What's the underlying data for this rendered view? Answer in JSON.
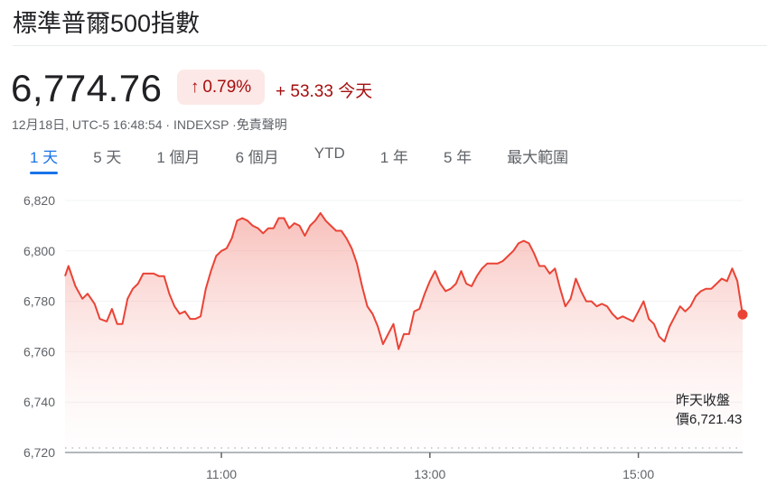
{
  "header": {
    "title": "標準普爾500指數"
  },
  "quote": {
    "price": "6,774.76",
    "change_pct": "0.79%",
    "change_abs": "+ 53.33",
    "change_period": "今天",
    "meta": "12月18日, UTC-5 16:48:54 · INDEXSP ·免責聲明",
    "direction_icon": "arrow-up-icon",
    "color": "#a50e0e"
  },
  "tabs": [
    {
      "label": "1 天",
      "active": true
    },
    {
      "label": "5 天"
    },
    {
      "label": "1 個月"
    },
    {
      "label": "6 個月"
    },
    {
      "label": "YTD"
    },
    {
      "label": "1 年"
    },
    {
      "label": "5 年"
    },
    {
      "label": "最大範圍"
    }
  ],
  "chart_data": {
    "type": "area",
    "xlabel": "",
    "ylabel": "",
    "x_ticks": [
      "11:00",
      "13:00",
      "15:00"
    ],
    "y_ticks": [
      "6,720",
      "6,740",
      "6,760",
      "6,780",
      "6,800",
      "6,820"
    ],
    "xlim": [
      "09:30",
      "16:00"
    ],
    "ylim": [
      6720,
      6820
    ],
    "grid": true,
    "line_color": "#ea4335",
    "previous_close": 6721.43,
    "previous_close_label_1": "昨天收盤",
    "previous_close_label_2": "價6,721.43",
    "series": [
      {
        "x": [
          "09:30",
          "09:32",
          "09:36",
          "09:40",
          "09:43",
          "09:47",
          "09:50",
          "09:54",
          "09:57",
          "10:00",
          "10:03",
          "10:06",
          "10:09",
          "10:12",
          "10:15",
          "10:18",
          "10:21",
          "10:24",
          "10:27",
          "10:30",
          "10:33",
          "10:36",
          "10:39",
          "10:42",
          "10:45",
          "10:48",
          "10:51",
          "10:54",
          "10:57",
          "11:00",
          "11:03",
          "11:06",
          "11:09",
          "11:12",
          "11:15",
          "11:18",
          "11:21",
          "11:24",
          "11:27",
          "11:30",
          "11:33",
          "11:36",
          "11:39",
          "11:42",
          "11:45",
          "11:48",
          "11:51",
          "11:54",
          "11:57",
          "12:00",
          "12:03",
          "12:06",
          "12:09",
          "12:12",
          "12:15",
          "12:18",
          "12:21",
          "12:24",
          "12:27",
          "12:30",
          "12:33",
          "12:36",
          "12:39",
          "12:42",
          "12:45",
          "12:48",
          "12:51",
          "12:54",
          "12:57",
          "13:00",
          "13:03",
          "13:06",
          "13:09",
          "13:12",
          "13:15",
          "13:18",
          "13:21",
          "13:24",
          "13:27",
          "13:30",
          "13:33",
          "13:36",
          "13:39",
          "13:42",
          "13:45",
          "13:48",
          "13:51",
          "13:54",
          "13:57",
          "14:00",
          "14:03",
          "14:06",
          "14:09",
          "14:12",
          "14:15",
          "14:18",
          "14:21",
          "14:24",
          "14:27",
          "14:30",
          "14:33",
          "14:36",
          "14:39",
          "14:42",
          "14:45",
          "14:48",
          "14:51",
          "14:54",
          "14:57",
          "15:00",
          "15:03",
          "15:06",
          "15:09",
          "15:12",
          "15:15",
          "15:18",
          "15:21",
          "15:24",
          "15:27",
          "15:30",
          "15:33",
          "15:36",
          "15:39",
          "15:42",
          "15:45",
          "15:48",
          "15:51",
          "15:54",
          "15:57",
          "15:59",
          "16:00"
        ],
        "y": [
          6790,
          6794,
          6786,
          6781,
          6783,
          6779,
          6773,
          6772,
          6777,
          6771,
          6771,
          6781,
          6785,
          6787,
          6791,
          6791,
          6791,
          6790,
          6790,
          6783,
          6778,
          6775,
          6776,
          6773,
          6773,
          6774,
          6785,
          6792,
          6798,
          6800,
          6801,
          6805,
          6812,
          6813,
          6812,
          6810,
          6809,
          6807,
          6809,
          6809,
          6813,
          6813,
          6809,
          6811,
          6810,
          6806,
          6810,
          6812,
          6815,
          6812,
          6810,
          6808,
          6808,
          6805,
          6801,
          6795,
          6786,
          6778,
          6775,
          6770,
          6763,
          6767,
          6771,
          6761,
          6767,
          6767,
          6776,
          6777,
          6783,
          6788,
          6792,
          6787,
          6784,
          6785,
          6787,
          6792,
          6787,
          6786,
          6790,
          6793,
          6795,
          6795,
          6795,
          6796,
          6798,
          6800,
          6803,
          6804,
          6803,
          6799,
          6794,
          6794,
          6791,
          6793,
          6785,
          6778,
          6781,
          6789,
          6784,
          6780,
          6780,
          6778,
          6779,
          6778,
          6775,
          6773,
          6774,
          6773,
          6772,
          6776,
          6780,
          6773,
          6771,
          6766,
          6764,
          6770,
          6774,
          6778,
          6776,
          6778,
          6782,
          6784,
          6785,
          6785,
          6787,
          6789,
          6788,
          6793,
          6788,
          6779,
          6774.76
        ]
      }
    ]
  }
}
